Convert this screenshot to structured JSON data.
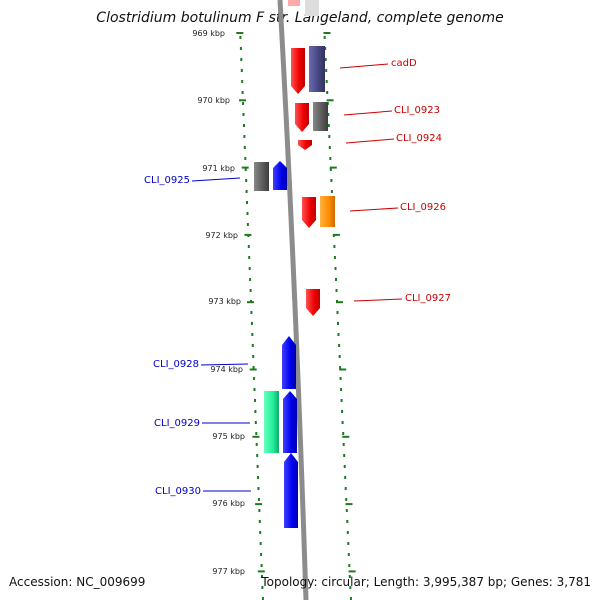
{
  "title": "Clostridium botulinum F str. Langeland, complete genome",
  "accession": "Accession: NC_009699",
  "topology": "Topology: circular; Length: 3,995,387 bp; Genes: 3,781",
  "colors": {
    "backbone": "#8c8c8c",
    "tick": "#1f7a1f",
    "label_right": "#cc0000",
    "label_left": "#0000cc",
    "red": "#ff0000",
    "blue": "#0000ff",
    "dark_slate": "#4b4b8a",
    "gray": "#5a5a5a",
    "orange": "#ff8800",
    "green": "#22ee99"
  },
  "scale": {
    "unit": "kbp",
    "labels": [
      "969 kbp",
      "970 kbp",
      "971 kbp",
      "972 kbp",
      "973 kbp",
      "974 kbp",
      "975 kbp",
      "976 kbp",
      "977 kbp"
    ]
  },
  "genes": [
    {
      "name": "cadD",
      "side": "right"
    },
    {
      "name": "CLI_0923",
      "side": "right"
    },
    {
      "name": "CLI_0924",
      "side": "right"
    },
    {
      "name": "CLI_0925",
      "side": "left"
    },
    {
      "name": "CLI_0926",
      "side": "right"
    },
    {
      "name": "CLI_0927",
      "side": "right"
    },
    {
      "name": "CLI_0928",
      "side": "left"
    },
    {
      "name": "CLI_0929",
      "side": "left"
    },
    {
      "name": "CLI_0930",
      "side": "left"
    }
  ]
}
